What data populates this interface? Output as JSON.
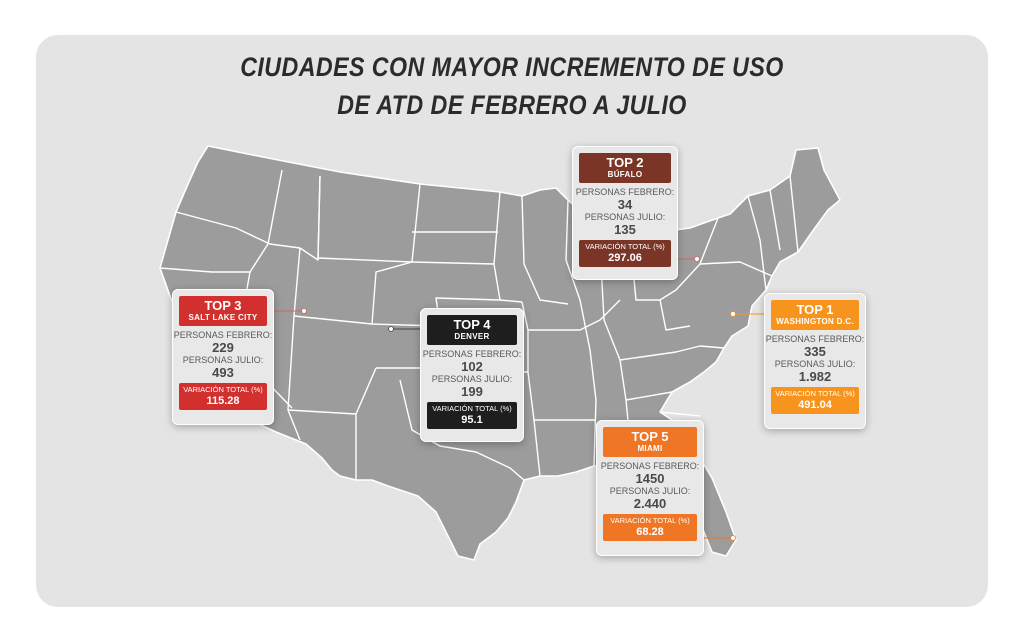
{
  "title": {
    "line1": "CIUDADES CON MAYOR INCREMENTO DE USO",
    "line2": "DE ATD DE FEBRERO A JULIO"
  },
  "colors": {
    "top1": "#f7941d",
    "top2": "#7b3527",
    "top3": "#d2302f",
    "top4": "#1e1e1e",
    "top5": "#ee7624",
    "land": "#9c9c9c",
    "border": "#ffffff",
    "background": "#e4e4e4"
  },
  "cities": [
    {
      "id": "top1",
      "rank": "TOP 1",
      "name": "WASHINGTON D.C.",
      "feb_label": "PERSONAS FEBRERO:",
      "feb": "335",
      "jul_label": "PERSONAS JULIO:",
      "jul": "1.982",
      "var_label": "VARIACIÓN TOTAL (%)",
      "var": "491.04"
    },
    {
      "id": "top2",
      "rank": "TOP 2",
      "name": "BÚFALO",
      "feb_label": "PERSONAS FEBRERO:",
      "feb": "34",
      "jul_label": "PERSONAS JULIO:",
      "jul": "135",
      "var_label": "VARIACIÓN TOTAL (%)",
      "var": "297.06"
    },
    {
      "id": "top3",
      "rank": "TOP 3",
      "name": "SALT LAKE CITY",
      "feb_label": "PERSONAS FEBRERO:",
      "feb": "229",
      "jul_label": "PERSONAS JULIO:",
      "jul": "493",
      "var_label": "VARIACIÓN TOTAL (%)",
      "var": "115.28"
    },
    {
      "id": "top4",
      "rank": "TOP 4",
      "name": "DENVER",
      "feb_label": "PERSONAS FEBRERO:",
      "feb": "102",
      "jul_label": "PERSONAS JULIO:",
      "jul": "199",
      "var_label": "VARIACIÓN TOTAL (%)",
      "var": "95.1"
    },
    {
      "id": "top5",
      "rank": "TOP 5",
      "name": "MIAMI",
      "feb_label": "PERSONAS FEBRERO:",
      "feb": "1450",
      "jul_label": "PERSONAS JULIO:",
      "jul": "2.440",
      "var_label": "VARIACIÓN TOTAL (%)",
      "var": "68.28"
    }
  ]
}
